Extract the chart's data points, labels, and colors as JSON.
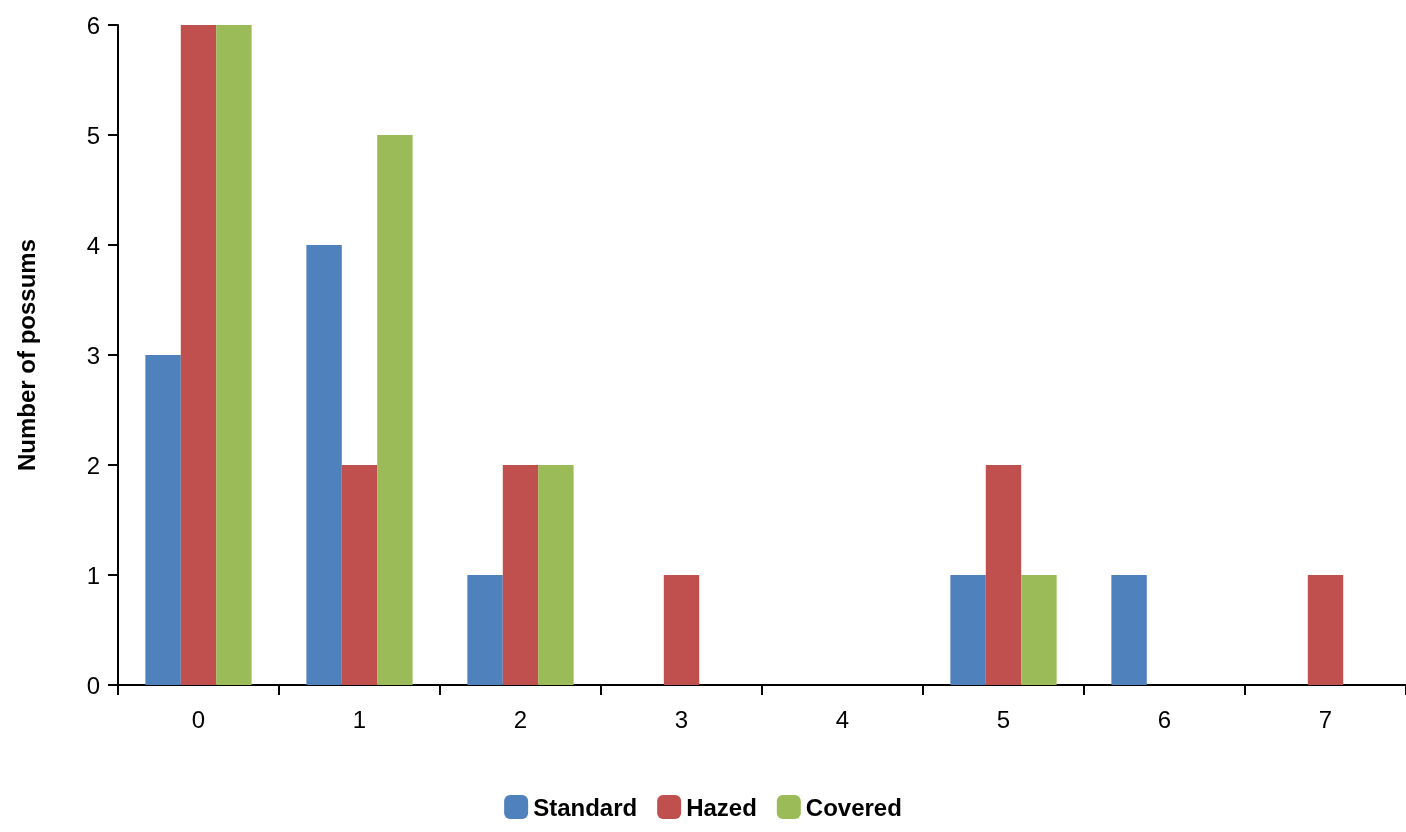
{
  "chart_data": {
    "type": "bar",
    "ylabel": "Number of possums",
    "categories": [
      "0",
      "1",
      "2",
      "3",
      "4",
      "5",
      "6",
      "7"
    ],
    "series": [
      {
        "name": "Standard",
        "color": "#4f81bd",
        "values": [
          3,
          4,
          1,
          0,
          0,
          1,
          1,
          0
        ]
      },
      {
        "name": "Hazed",
        "color": "#c0504d",
        "values": [
          6,
          2,
          2,
          1,
          0,
          2,
          0,
          1
        ]
      },
      {
        "name": "Covered",
        "color": "#9bbb59",
        "values": [
          6,
          5,
          2,
          0,
          0,
          1,
          0,
          0
        ]
      }
    ],
    "ylim": [
      0,
      6
    ],
    "yticks": [
      0,
      1,
      2,
      3,
      4,
      5,
      6
    ],
    "grid": false,
    "legend": "bottom"
  }
}
